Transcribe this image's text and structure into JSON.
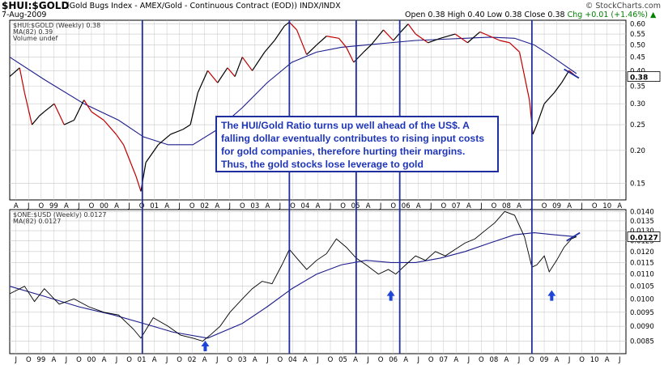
{
  "header": {
    "ticker": "$HUI:$GOLD",
    "subtitle": "(Gold Bugs Index - AMEX/Gold - Continuous Contract (EOD)) INDX/INDX",
    "date": "7-Aug-2009",
    "ohlc": "Open 0.38  High 0.40  Low 0.38  Close 0.38",
    "change": "Chg +0.01 (+1.46%)",
    "change_arrow": "▲",
    "brand": "© StockCharts.com"
  },
  "colors": {
    "price_up": "#000000",
    "price_down": "#c00000",
    "ma_line": "#1c1c8c",
    "vertical_line": "#1f2f9e",
    "arrow": "#1f45d8",
    "annotation_text": "#1f35b8",
    "grid": "#c8c8c8"
  },
  "annotation": {
    "text": "The HUI/Gold Ratio turns up well ahead of the US$. A falling dollar eventually contributes to rising input costs for gold companies, therefore hurting their margins. Thus, the gold stocks lose leverage to gold"
  },
  "x_axis": {
    "top_labels": [
      "A",
      "J",
      "O",
      "99",
      "A",
      "J",
      "O",
      "00",
      "A",
      "J",
      "O",
      "01",
      "A",
      "J",
      "O",
      "02",
      "A",
      "J",
      "O",
      "03",
      "A",
      "J",
      "O",
      "04",
      "A",
      "J",
      "O",
      "05",
      "A",
      "J",
      "O",
      "06",
      "A",
      "J",
      "O",
      "07",
      "A",
      "J",
      "O",
      "08",
      "A",
      "J",
      "O",
      "09",
      "A",
      "J",
      "O",
      "10",
      "A"
    ],
    "bottom_labels": [
      "J",
      "O",
      "99",
      "A",
      "J",
      "O",
      "00",
      "A",
      "J",
      "O",
      "01",
      "A",
      "J",
      "O",
      "02",
      "A",
      "J",
      "O",
      "03",
      "A",
      "J",
      "O",
      "04",
      "A",
      "J",
      "O",
      "05",
      "A",
      "J",
      "O",
      "06",
      "A",
      "J",
      "O",
      "07",
      "A",
      "J",
      "O",
      "08",
      "A",
      "J",
      "O",
      "09",
      "A",
      "J",
      "O",
      "10",
      "A",
      "J"
    ]
  },
  "chart_data": [
    {
      "type": "line",
      "title": "$HUI:$GOLD (Weekly) 0.38",
      "legend": [
        "$HUI:$GOLD (Weekly) 0.38",
        "MA(82) 0.39",
        "Volume undef"
      ],
      "x_range": [
        1998.3,
        2010.75
      ],
      "ylim": [
        0.13,
        0.62
      ],
      "y_scale": "log",
      "y_ticks": [
        "0.15",
        "0.20",
        "0.25",
        "0.30",
        "0.35",
        "0.40",
        "0.45",
        "0.50",
        "0.55",
        "0.60"
      ],
      "last_value_label": "0.38",
      "series": [
        {
          "name": "$HUI:$GOLD",
          "points": [
            [
              1998.3,
              0.38
            ],
            [
              1998.5,
              0.41
            ],
            [
              1998.6,
              0.33
            ],
            [
              1998.75,
              0.25
            ],
            [
              1998.9,
              0.27
            ],
            [
              1999.0,
              0.28
            ],
            [
              1999.2,
              0.3
            ],
            [
              1999.4,
              0.25
            ],
            [
              1999.6,
              0.26
            ],
            [
              1999.8,
              0.31
            ],
            [
              1999.95,
              0.28
            ],
            [
              2000.2,
              0.26
            ],
            [
              2000.45,
              0.23
            ],
            [
              2000.6,
              0.21
            ],
            [
              2000.85,
              0.16
            ],
            [
              2000.95,
              0.14
            ],
            [
              2001.05,
              0.18
            ],
            [
              2001.3,
              0.21
            ],
            [
              2001.55,
              0.23
            ],
            [
              2001.8,
              0.24
            ],
            [
              2001.95,
              0.25
            ],
            [
              2002.1,
              0.33
            ],
            [
              2002.3,
              0.4
            ],
            [
              2002.5,
              0.36
            ],
            [
              2002.7,
              0.41
            ],
            [
              2002.85,
              0.38
            ],
            [
              2003.0,
              0.45
            ],
            [
              2003.2,
              0.4
            ],
            [
              2003.45,
              0.47
            ],
            [
              2003.65,
              0.52
            ],
            [
              2003.85,
              0.59
            ],
            [
              2003.95,
              0.61
            ],
            [
              2004.1,
              0.57
            ],
            [
              2004.3,
              0.46
            ],
            [
              2004.5,
              0.5
            ],
            [
              2004.7,
              0.54
            ],
            [
              2004.95,
              0.53
            ],
            [
              2005.1,
              0.49
            ],
            [
              2005.25,
              0.43
            ],
            [
              2005.45,
              0.47
            ],
            [
              2005.6,
              0.5
            ],
            [
              2005.85,
              0.57
            ],
            [
              2006.05,
              0.52
            ],
            [
              2006.2,
              0.56
            ],
            [
              2006.35,
              0.6
            ],
            [
              2006.5,
              0.55
            ],
            [
              2006.75,
              0.51
            ],
            [
              2007.0,
              0.53
            ],
            [
              2007.3,
              0.55
            ],
            [
              2007.55,
              0.51
            ],
            [
              2007.8,
              0.56
            ],
            [
              2008.0,
              0.54
            ],
            [
              2008.2,
              0.52
            ],
            [
              2008.4,
              0.51
            ],
            [
              2008.6,
              0.47
            ],
            [
              2008.8,
              0.31
            ],
            [
              2008.87,
              0.23
            ],
            [
              2008.95,
              0.25
            ],
            [
              2009.1,
              0.3
            ],
            [
              2009.3,
              0.33
            ],
            [
              2009.45,
              0.36
            ],
            [
              2009.6,
              0.4
            ],
            [
              2009.75,
              0.38
            ]
          ]
        },
        {
          "name": "MA(82)",
          "points": [
            [
              1998.3,
              0.45
            ],
            [
              1999.0,
              0.37
            ],
            [
              1999.8,
              0.3
            ],
            [
              2000.5,
              0.26
            ],
            [
              2001.0,
              0.225
            ],
            [
              2001.5,
              0.21
            ],
            [
              2002.0,
              0.21
            ],
            [
              2002.5,
              0.24
            ],
            [
              2003.0,
              0.29
            ],
            [
              2003.5,
              0.36
            ],
            [
              2004.0,
              0.43
            ],
            [
              2004.5,
              0.47
            ],
            [
              2005.0,
              0.49
            ],
            [
              2005.5,
              0.5
            ],
            [
              2006.0,
              0.51
            ],
            [
              2006.5,
              0.52
            ],
            [
              2007.0,
              0.525
            ],
            [
              2007.5,
              0.53
            ],
            [
              2008.0,
              0.535
            ],
            [
              2008.5,
              0.53
            ],
            [
              2008.9,
              0.5
            ],
            [
              2009.2,
              0.46
            ],
            [
              2009.5,
              0.42
            ],
            [
              2009.75,
              0.39
            ]
          ]
        }
      ]
    },
    {
      "type": "line",
      "title": "$ONE:$USD (Weekly) 0.0127",
      "legend": [
        "$ONE:$USD (Weekly) 0.0127",
        "MA(82) 0.0127"
      ],
      "x_range": [
        1998.3,
        2010.75
      ],
      "ylim": [
        0.0081,
        0.0141
      ],
      "y_scale": "log",
      "y_ticks": [
        "0.0085",
        "0.0090",
        "0.0095",
        "0.0100",
        "0.0105",
        "0.0110",
        "0.0115",
        "0.0120",
        "0.0125",
        "0.0130",
        "0.0135",
        "0.0140"
      ],
      "last_value_label": "0.0127",
      "series": [
        {
          "name": "$ONE:$USD",
          "points": [
            [
              1998.3,
              0.0102
            ],
            [
              1998.6,
              0.0105
            ],
            [
              1998.8,
              0.0099
            ],
            [
              1999.0,
              0.0104
            ],
            [
              1999.3,
              0.0098
            ],
            [
              1999.6,
              0.01
            ],
            [
              1999.9,
              0.0097
            ],
            [
              2000.2,
              0.0095
            ],
            [
              2000.5,
              0.0094
            ],
            [
              2000.8,
              0.0089
            ],
            [
              2000.95,
              0.0086
            ],
            [
              2001.2,
              0.0093
            ],
            [
              2001.5,
              0.009
            ],
            [
              2001.75,
              0.0087
            ],
            [
              2002.0,
              0.0086
            ],
            [
              2002.2,
              0.0085
            ],
            [
              2002.35,
              0.0087
            ],
            [
              2002.55,
              0.009
            ],
            [
              2002.75,
              0.0095
            ],
            [
              2003.0,
              0.01
            ],
            [
              2003.2,
              0.0104
            ],
            [
              2003.4,
              0.0107
            ],
            [
              2003.6,
              0.0106
            ],
            [
              2003.8,
              0.0114
            ],
            [
              2003.95,
              0.0121
            ],
            [
              2004.1,
              0.0117
            ],
            [
              2004.3,
              0.0112
            ],
            [
              2004.5,
              0.0116
            ],
            [
              2004.7,
              0.0119
            ],
            [
              2004.9,
              0.0126
            ],
            [
              2005.1,
              0.0122
            ],
            [
              2005.3,
              0.0117
            ],
            [
              2005.5,
              0.0114
            ],
            [
              2005.75,
              0.011
            ],
            [
              2005.95,
              0.0112
            ],
            [
              2006.1,
              0.011
            ],
            [
              2006.3,
              0.0114
            ],
            [
              2006.5,
              0.0118
            ],
            [
              2006.7,
              0.0116
            ],
            [
              2006.9,
              0.012
            ],
            [
              2007.1,
              0.0118
            ],
            [
              2007.3,
              0.0121
            ],
            [
              2007.5,
              0.0124
            ],
            [
              2007.7,
              0.0126
            ],
            [
              2007.9,
              0.013
            ],
            [
              2008.1,
              0.0134
            ],
            [
              2008.3,
              0.014
            ],
            [
              2008.5,
              0.0138
            ],
            [
              2008.7,
              0.0127
            ],
            [
              2008.85,
              0.0113
            ],
            [
              2008.95,
              0.0114
            ],
            [
              2009.1,
              0.0118
            ],
            [
              2009.2,
              0.0111
            ],
            [
              2009.35,
              0.0116
            ],
            [
              2009.5,
              0.0122
            ],
            [
              2009.65,
              0.0126
            ],
            [
              2009.75,
              0.0127
            ]
          ]
        },
        {
          "name": "MA(82)",
          "points": [
            [
              1998.3,
              0.0105
            ],
            [
              1999.0,
              0.0101
            ],
            [
              1999.7,
              0.0097
            ],
            [
              2000.4,
              0.0094
            ],
            [
              2001.0,
              0.0091
            ],
            [
              2001.6,
              0.0088
            ],
            [
              2002.3,
              0.0086
            ],
            [
              2003.0,
              0.0091
            ],
            [
              2003.5,
              0.0097
            ],
            [
              2004.0,
              0.0104
            ],
            [
              2004.5,
              0.011
            ],
            [
              2005.0,
              0.0114
            ],
            [
              2005.5,
              0.0116
            ],
            [
              2006.0,
              0.0115
            ],
            [
              2006.5,
              0.0115
            ],
            [
              2007.0,
              0.0117
            ],
            [
              2007.5,
              0.012
            ],
            [
              2008.0,
              0.0124
            ],
            [
              2008.5,
              0.0128
            ],
            [
              2008.9,
              0.0129
            ],
            [
              2009.3,
              0.0128
            ],
            [
              2009.75,
              0.0127
            ]
          ]
        }
      ]
    }
  ],
  "markers": {
    "vertical_lines_at": [
      2000.98,
      2003.95,
      2005.3,
      2006.18,
      2008.85
    ],
    "arrows_at": [
      {
        "x": 2002.25,
        "panel": 1
      },
      {
        "x": 2006.0,
        "panel": 1
      },
      {
        "x": 2009.25,
        "panel": 1
      }
    ]
  }
}
